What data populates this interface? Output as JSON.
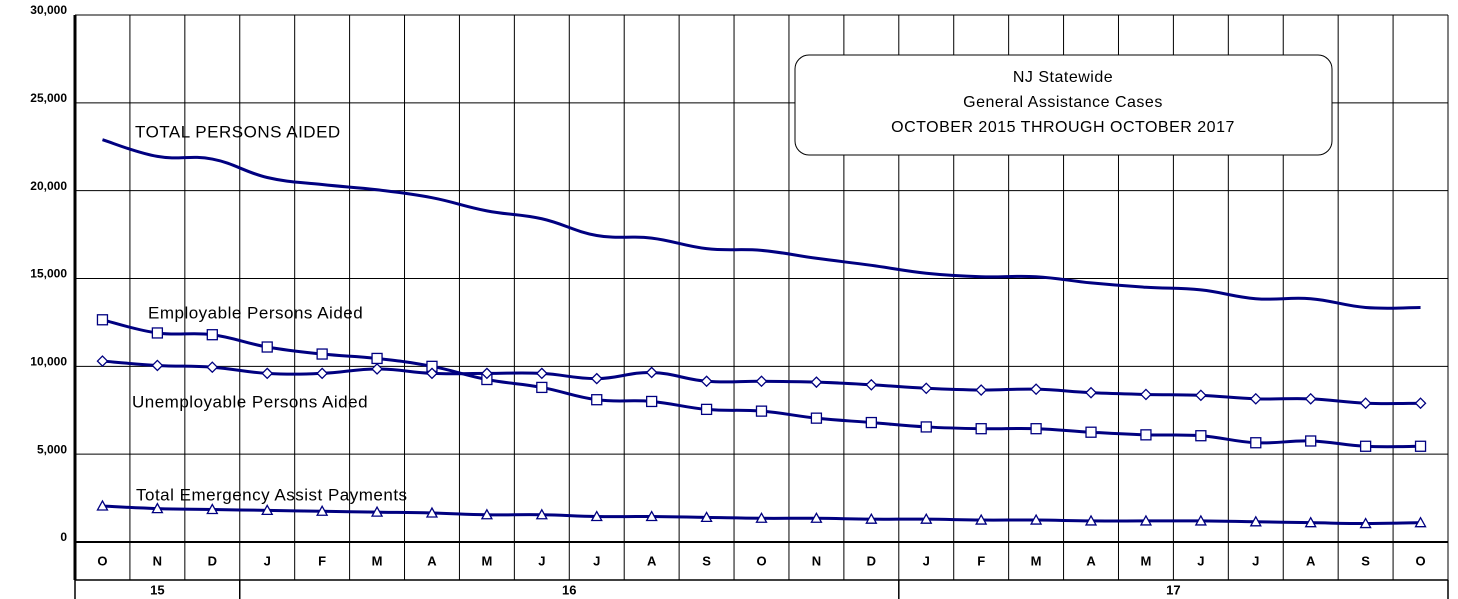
{
  "chart_data": {
    "type": "line",
    "title_lines": [
      "NJ Statewide",
      "General Assistance Cases",
      "OCTOBER 2015 THROUGH OCTOBER 2017"
    ],
    "categories": [
      "O",
      "N",
      "D",
      "J",
      "F",
      "M",
      "A",
      "M",
      "J",
      "J",
      "A",
      "S",
      "O",
      "N",
      "D",
      "J",
      "F",
      "M",
      "A",
      "M",
      "J",
      "J",
      "A",
      "S",
      "O"
    ],
    "year_groups": [
      {
        "label": "15",
        "count": 3
      },
      {
        "label": "16",
        "count": 12
      },
      {
        "label": "17",
        "count": 10
      }
    ],
    "ylim": [
      0,
      30000
    ],
    "yticks": [
      0,
      {
        "value": 5000,
        "label": "5,000"
      },
      {
        "value": 10000,
        "label": "10,000"
      },
      {
        "value": 15000,
        "label": "15,000"
      },
      {
        "value": 20000,
        "label": "20,000"
      },
      {
        "value": 25000,
        "label": "25,000"
      },
      {
        "value": 30000,
        "label": "30,000"
      }
    ],
    "grid": true,
    "series": [
      {
        "name": "TOTAL PERSONS AIDED",
        "color": "#000080",
        "marker": "none",
        "values": [
          22900,
          21950,
          21800,
          20750,
          20350,
          20050,
          19600,
          18850,
          18400,
          17450,
          17300,
          16700,
          16600,
          16150,
          15750,
          15300,
          15100,
          15100,
          14750,
          14500,
          14350,
          13850,
          13850,
          13350,
          13350
        ]
      },
      {
        "name": "Employable Persons Aided",
        "color": "#000080",
        "marker": "square",
        "values": [
          12650,
          11900,
          11800,
          11100,
          10700,
          10450,
          10000,
          9250,
          8800,
          8100,
          8000,
          7550,
          7450,
          7050,
          6800,
          6550,
          6450,
          6450,
          6250,
          6100,
          6050,
          5650,
          5750,
          5450,
          5450
        ]
      },
      {
        "name": "Unemployable Persons Aided",
        "color": "#000080",
        "marker": "diamond",
        "values": [
          10300,
          10050,
          9950,
          9600,
          9600,
          9850,
          9600,
          9600,
          9600,
          9300,
          9650,
          9150,
          9150,
          9100,
          8950,
          8750,
          8650,
          8700,
          8500,
          8400,
          8350,
          8150,
          8150,
          7900,
          7900
        ]
      },
      {
        "name": "Total Emergency Assist Payments",
        "color": "#000080",
        "marker": "triangle",
        "values": [
          2050,
          1900,
          1850,
          1800,
          1750,
          1700,
          1650,
          1550,
          1550,
          1450,
          1450,
          1400,
          1350,
          1350,
          1300,
          1300,
          1250,
          1250,
          1200,
          1200,
          1200,
          1150,
          1100,
          1050,
          1100
        ]
      }
    ]
  }
}
